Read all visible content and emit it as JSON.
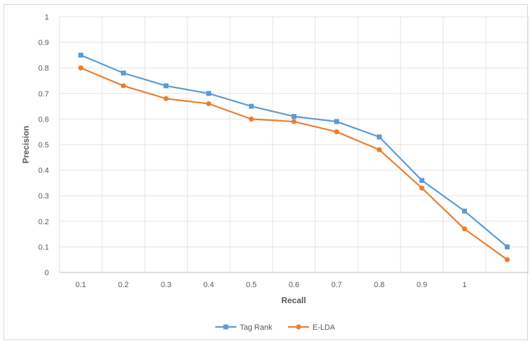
{
  "chart_data": {
    "type": "line",
    "title": "",
    "xlabel": "Recall",
    "ylabel": "Precision",
    "categories": [
      "0.1",
      "0.2",
      "0.3",
      "0.4",
      "0.5",
      "0.6",
      "0.7",
      "0.8",
      "0.9",
      "1",
      ""
    ],
    "ylim": [
      0,
      1
    ],
    "yticks": [
      "0",
      "0.1",
      "0.2",
      "0.3",
      "0.4",
      "0.5",
      "0.6",
      "0.7",
      "0.8",
      "0.9",
      "1"
    ],
    "grid": true,
    "legend_position": "bottom",
    "series": [
      {
        "name": "Tag Rank",
        "color": "#5b9bd5",
        "marker": "square",
        "values": [
          0.85,
          0.78,
          0.73,
          0.7,
          0.65,
          0.61,
          0.59,
          0.53,
          0.36,
          0.24,
          0.1
        ]
      },
      {
        "name": "E-LDA",
        "color": "#ed7d31",
        "marker": "circle",
        "values": [
          0.8,
          0.73,
          0.68,
          0.66,
          0.6,
          0.59,
          0.55,
          0.48,
          0.33,
          0.17,
          0.05
        ]
      }
    ]
  }
}
